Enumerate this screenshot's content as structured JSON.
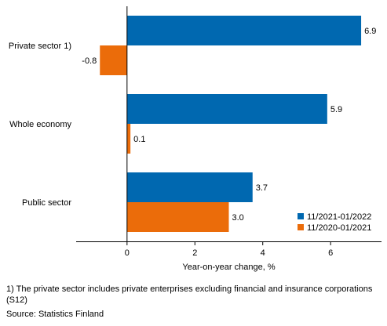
{
  "chart_data": {
    "type": "bar",
    "orientation": "horizontal",
    "categories": [
      "Private sector 1)",
      "Whole economy",
      "Public sector"
    ],
    "series": [
      {
        "name": "11/2021-01/2022",
        "color": "#0068b0",
        "values": [
          6.9,
          5.9,
          3.7
        ],
        "labels": [
          "6.9",
          "5.9",
          "3.7"
        ]
      },
      {
        "name": "11/2020-01/2021",
        "color": "#eb6c0a",
        "values": [
          -0.8,
          0.1,
          3.0
        ],
        "labels": [
          "-0.8",
          "0.1",
          "3.0"
        ]
      }
    ],
    "xlabel": "Year-on-year change, %",
    "xlim": [
      -1.5,
      7.5
    ],
    "xticks": [
      "0",
      "2",
      "4",
      "6"
    ],
    "xtick_values": [
      0,
      2,
      4,
      6
    ],
    "grid": false,
    "legend_position": "bottom-right"
  },
  "footnote": "1) The private sector includes private enterprises excluding financial and insurance corporations (S12)",
  "source": "Source: Statistics Finland"
}
